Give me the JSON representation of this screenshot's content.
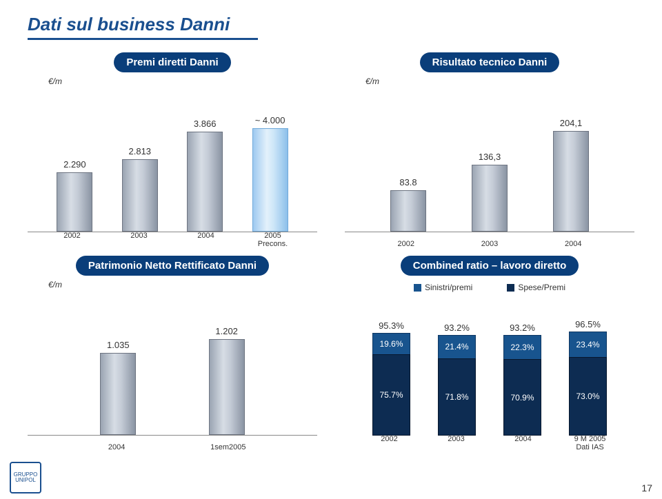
{
  "page": {
    "title": "Dati sul business Danni",
    "page_number": "17",
    "logo_text": "GRUPPO UNIPOL"
  },
  "chart1": {
    "pill": "Premi diretti Danni",
    "unit": "€/m",
    "ymax": 4000,
    "bars": [
      {
        "x": "2002",
        "v": 2290,
        "label": "2.290",
        "highlight": false
      },
      {
        "x": "2003",
        "v": 2813,
        "label": "2.813",
        "highlight": false
      },
      {
        "x": "2004",
        "v": 3866,
        "label": "3.866",
        "highlight": false
      },
      {
        "x": "2005\nPrecons.",
        "v": 4000,
        "label": "~ 4.000",
        "highlight": true
      }
    ]
  },
  "chart2": {
    "pill": "Risultato tecnico Danni",
    "unit": "€/m",
    "ymax": 210,
    "bars": [
      {
        "x": "2002",
        "v": 83.8,
        "label": "83.8",
        "highlight": false
      },
      {
        "x": "2003",
        "v": 136.3,
        "label": "136,3",
        "highlight": false
      },
      {
        "x": "2004",
        "v": 204.1,
        "label": "204,1",
        "highlight": false
      }
    ]
  },
  "chart3": {
    "pill": "Patrimonio Netto Rettificato Danni",
    "unit": "€/m",
    "ymax": 1300,
    "bars": [
      {
        "x": "2004",
        "v": 1035,
        "label": "1.035",
        "highlight": false
      },
      {
        "x": "1sem2005",
        "v": 1202,
        "label": "1.202",
        "highlight": false
      }
    ]
  },
  "chart4": {
    "pill": "Combined ratio – lavoro diretto",
    "legend": {
      "top": "Sinistri/premi",
      "bot": "Spese/Premi"
    },
    "colors": {
      "top": "#18548e",
      "bot": "#0d2c52"
    },
    "ymax": 115,
    "items": [
      {
        "x": "2002",
        "total": "95.3%",
        "top_v": 19.6,
        "top_lbl": "19.6%",
        "bot_v": 75.7,
        "bot_lbl": "75.7%"
      },
      {
        "x": "2003",
        "total": "93.2%",
        "top_v": 21.4,
        "top_lbl": "21.4%",
        "bot_v": 71.8,
        "bot_lbl": "71.8%"
      },
      {
        "x": "2004",
        "total": "93.2%",
        "top_v": 22.3,
        "top_lbl": "22.3%",
        "bot_v": 70.9,
        "bot_lbl": "70.9%"
      },
      {
        "x": "9 M 2005\nDati IAS",
        "total": "96.5%",
        "top_v": 23.4,
        "top_lbl": "23.4%",
        "bot_v": 73.0,
        "bot_lbl": "73.0%"
      }
    ]
  }
}
